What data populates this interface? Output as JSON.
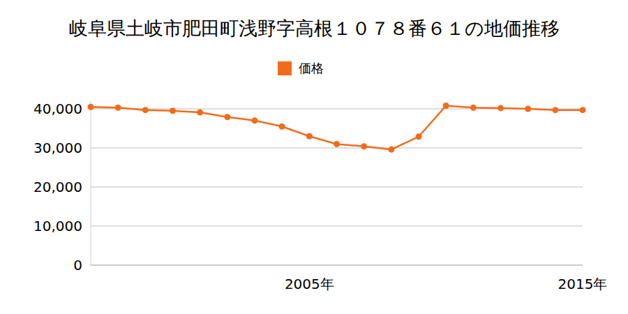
{
  "chart_data": {
    "type": "line",
    "title": "岐阜県土岐市肥田町浅野字高根１０７８番６１の地価推移",
    "categories": [
      null,
      null,
      null,
      null,
      null,
      null,
      null,
      null,
      "2005年",
      null,
      null,
      null,
      null,
      null,
      null,
      null,
      null,
      null,
      "2015年"
    ],
    "series": [
      {
        "name": "価格",
        "color": "#f26b1d",
        "marker": "circle",
        "values": [
          40500,
          40300,
          39700,
          39500,
          39100,
          37900,
          37000,
          35500,
          33000,
          31000,
          30400,
          29600,
          32900,
          40800,
          40300,
          40200,
          40000,
          39700,
          39700
        ]
      }
    ],
    "ylim": [
      0,
      42000
    ],
    "yticks": [
      0,
      {
        "value": 10000,
        "label": "10,000"
      },
      {
        "value": 20000,
        "label": "20,000"
      },
      {
        "value": 30000,
        "label": "30,000"
      },
      {
        "value": 40000,
        "label": "40,000"
      }
    ],
    "grid": true,
    "legend": "top"
  }
}
